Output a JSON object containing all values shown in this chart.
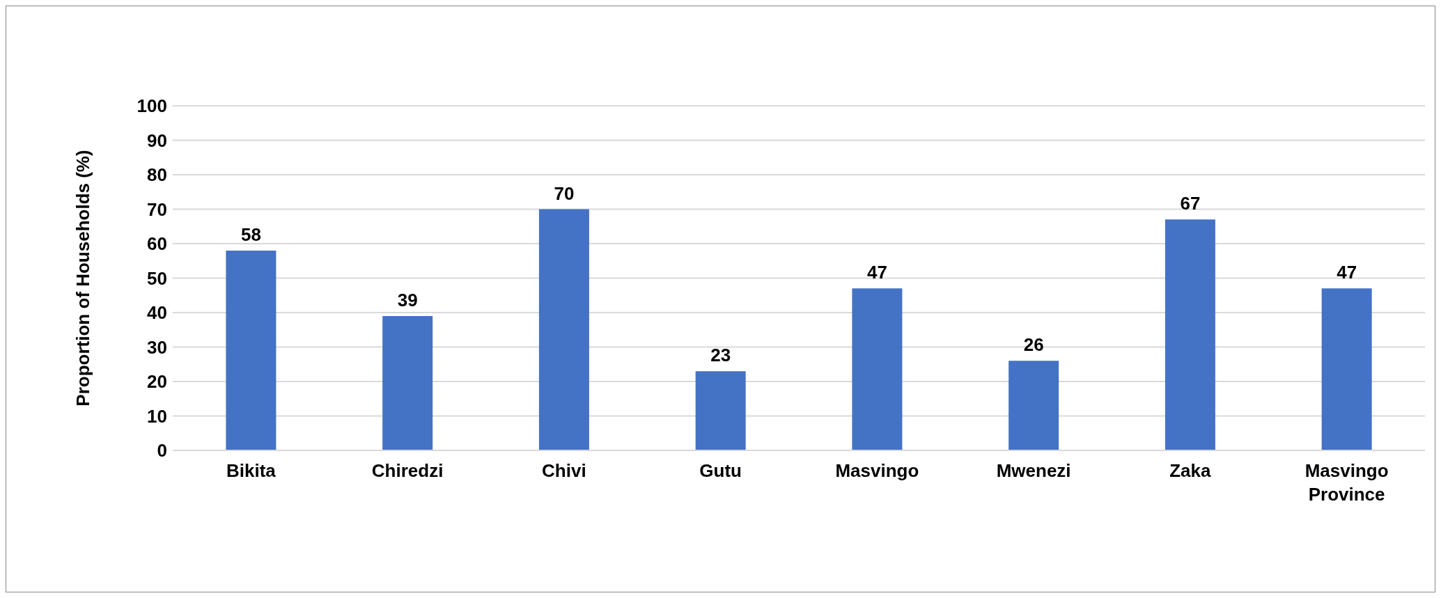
{
  "chart_data": {
    "type": "bar",
    "ylabel": "Proportion of Households (%)",
    "categories": [
      "Bikita",
      "Chiredzi",
      "Chivi",
      "Gutu",
      "Masvingo",
      "Mwenezi",
      "Zaka",
      "Masvingo Province"
    ],
    "values": [
      58,
      39,
      70,
      23,
      47,
      26,
      67,
      47
    ],
    "color": "#4472c4",
    "ylim": [
      0,
      100
    ],
    "yticks": [
      0,
      10,
      20,
      30,
      40,
      50,
      60,
      70,
      80,
      90,
      100
    ],
    "grid": "y",
    "data_labels": true
  }
}
